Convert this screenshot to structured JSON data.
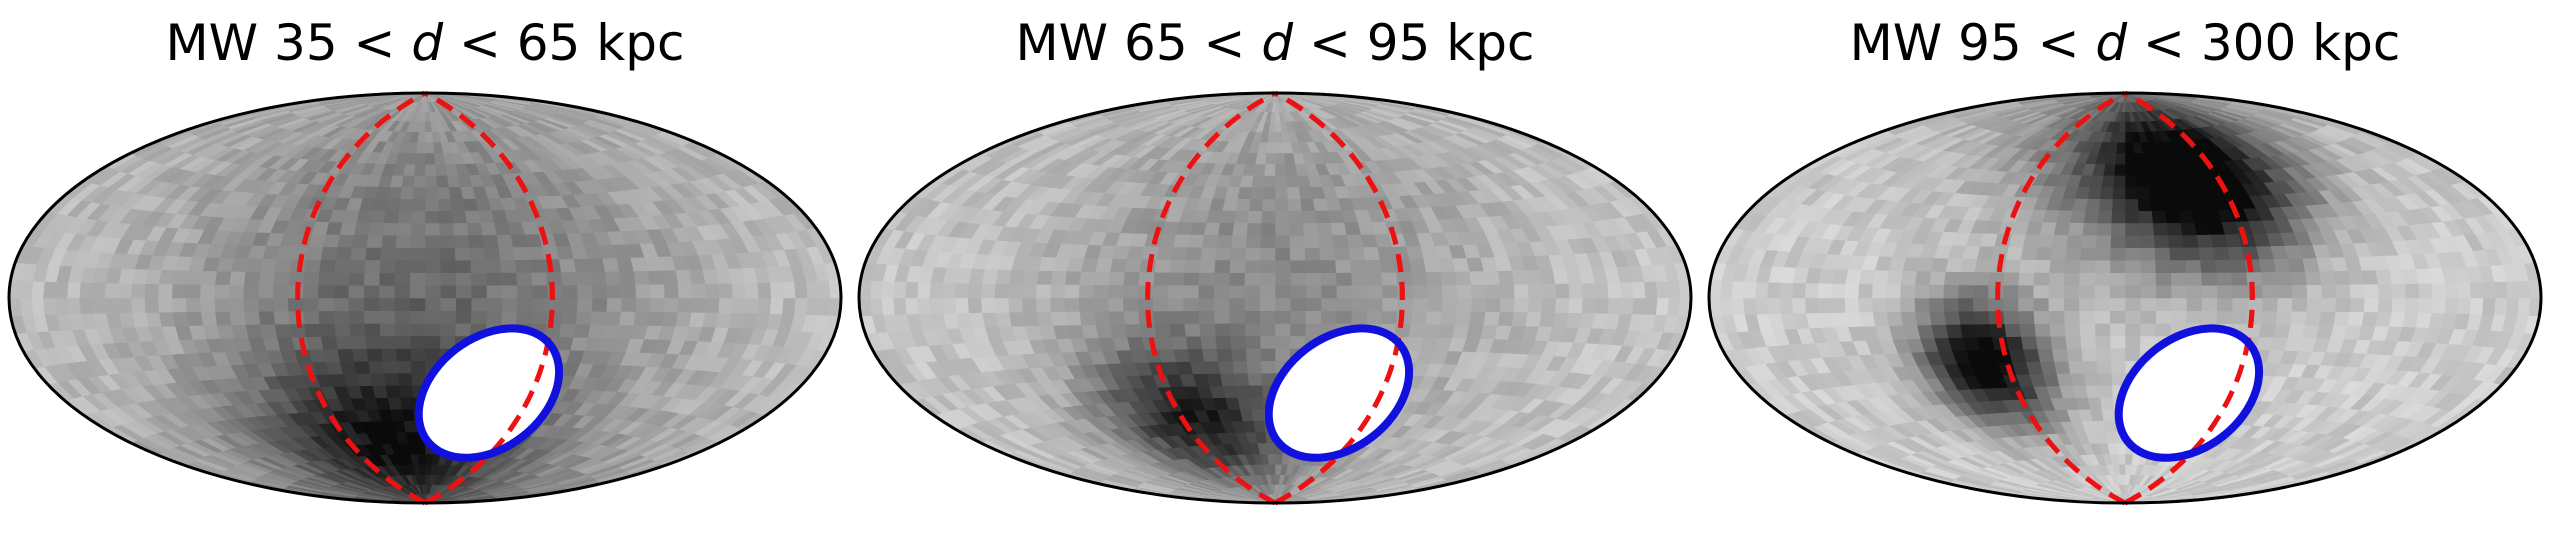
{
  "chart_data": [
    {
      "type": "heatmap",
      "projection": "hammer-aitoff all-sky",
      "colormap": "grayscale (white = low, black = high)",
      "title_prefix": "MW 35 < ",
      "title_var": "d",
      "title_suffix": " < 65 kpc",
      "density_peaks": [
        {
          "lon": 25,
          "lat": -62,
          "amp": 0.55,
          "width": 28
        },
        {
          "lon": 0,
          "lat": 0,
          "amp": 0.35,
          "width": 70
        }
      ],
      "base_level": 0.22,
      "overlays": {
        "great_circle_lon": 50,
        "great_circle_color": "#ee1111",
        "great_circle_style": "dashed",
        "lmc_ellipse_center": {
          "lon": -30,
          "lat": -38
        },
        "lmc_ellipse_color": "#1111dd"
      }
    },
    {
      "type": "heatmap",
      "projection": "hammer-aitoff all-sky",
      "colormap": "grayscale (white = low, black = high)",
      "title_prefix": "MW 65 < ",
      "title_var": "d",
      "title_suffix": " < 95 kpc",
      "density_peaks": [
        {
          "lon": 45,
          "lat": -50,
          "amp": 0.6,
          "width": 22
        },
        {
          "lon": 0,
          "lat": 10,
          "amp": 0.25,
          "width": 60
        }
      ],
      "base_level": 0.2,
      "overlays": {
        "great_circle_lon": 50,
        "great_circle_color": "#ee1111",
        "great_circle_style": "dashed",
        "lmc_ellipse_center": {
          "lon": -30,
          "lat": -38
        },
        "lmc_ellipse_color": "#1111dd"
      }
    },
    {
      "type": "heatmap",
      "projection": "hammer-aitoff all-sky",
      "colormap": "grayscale (white = low, black = high)",
      "title_prefix": "MW 95 < ",
      "title_var": "d",
      "title_suffix": " < 300 kpc",
      "density_peaks": [
        {
          "lon": 60,
          "lat": -25,
          "amp": 0.9,
          "width": 18
        },
        {
          "lon": -40,
          "lat": 45,
          "amp": 0.75,
          "width": 24
        },
        {
          "lon": -10,
          "lat": 60,
          "amp": 0.4,
          "width": 30
        }
      ],
      "base_level": 0.18,
      "overlays": {
        "great_circle_lon": 50,
        "great_circle_color": "#ee1111",
        "great_circle_style": "dashed",
        "lmc_ellipse_center": {
          "lon": -30,
          "lat": -38
        },
        "lmc_ellipse_color": "#1111dd"
      }
    }
  ]
}
